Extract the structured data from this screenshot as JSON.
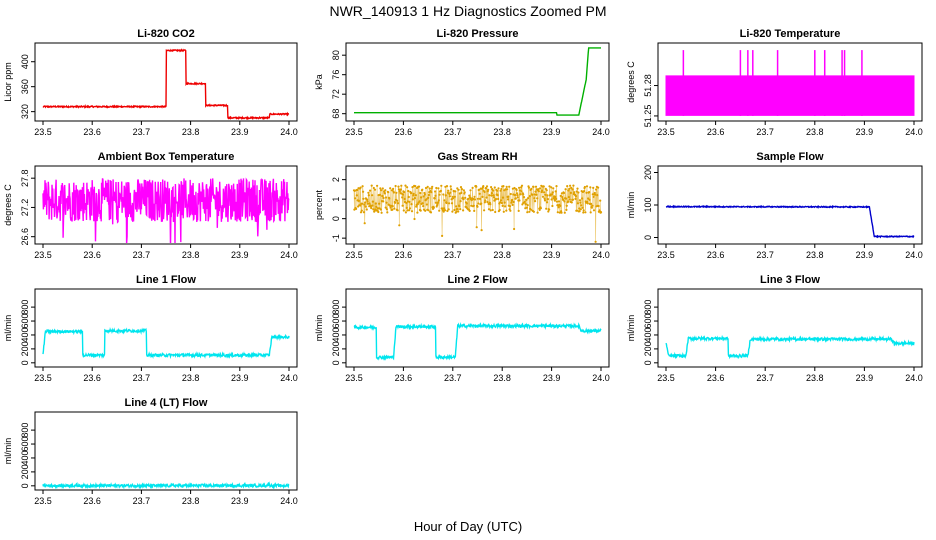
{
  "figure": {
    "title": "NWR_140913  1 Hz Diagnostics Zoomed PM",
    "xlabel": "Hour of Day (UTC)"
  },
  "chart_data": [
    {
      "type": "line",
      "title": "Li-820 CO2",
      "ylabel": "Licor ppm",
      "color": "#ee0000",
      "xlim": [
        23.5,
        24.0
      ],
      "ylim": [
        305,
        430
      ],
      "xticks": [
        "23.5",
        "23.6",
        "23.7",
        "23.8",
        "23.9",
        "24.0"
      ],
      "yticks": [
        320,
        360,
        400
      ],
      "x": [
        23.5,
        23.75,
        23.75,
        23.79,
        23.79,
        23.83,
        23.83,
        23.875,
        23.875,
        23.96,
        23.96,
        24.0
      ],
      "y": [
        328,
        328,
        418,
        418,
        365,
        365,
        330,
        330,
        310,
        310,
        316,
        316
      ]
    },
    {
      "type": "line",
      "title": "Li-820 Pressure",
      "ylabel": "kPa",
      "color": "#00b000",
      "xlim": [
        23.5,
        24.0
      ],
      "ylim": [
        66.5,
        82.5
      ],
      "xticks": [
        "23.5",
        "23.6",
        "23.7",
        "23.8",
        "23.9",
        "24.0"
      ],
      "yticks": [
        68,
        72,
        76,
        80
      ],
      "x": [
        23.5,
        23.91,
        23.91,
        23.955,
        23.97,
        23.975,
        24.0
      ],
      "y": [
        68.2,
        68.2,
        67.7,
        67.7,
        75,
        81.5,
        81.5
      ]
    },
    {
      "type": "line",
      "title": "Li-820 Temperature",
      "ylabel": "degrees C",
      "color": "#ff00ff",
      "xlim": [
        23.5,
        24.0
      ],
      "ylim": [
        51.245,
        51.322
      ],
      "xticks": [
        "23.5",
        "23.6",
        "23.7",
        "23.8",
        "23.9",
        "24.0"
      ],
      "yticks": [
        51.25,
        51.28
      ],
      "x": [
        23.5,
        24.0
      ],
      "y": [
        51.25,
        51.29
      ]
    },
    {
      "type": "line",
      "title": "Ambient Box Temperature",
      "ylabel": "degrees C",
      "color": "#ff00ff",
      "xlim": [
        23.5,
        24.0
      ],
      "ylim": [
        26.45,
        28.05
      ],
      "xticks": [
        "23.5",
        "23.6",
        "23.7",
        "23.8",
        "23.9",
        "24.0"
      ],
      "yticks": [
        26.6,
        27.2,
        27.8
      ],
      "x": [
        23.5,
        24.0
      ],
      "y": [
        27.35,
        27.35
      ]
    },
    {
      "type": "scatter",
      "title": "Gas Stream RH",
      "ylabel": "percent",
      "color": "#e0a000",
      "xlim": [
        23.5,
        24.0
      ],
      "ylim": [
        -1.3,
        2.7
      ],
      "xticks": [
        "23.5",
        "23.6",
        "23.7",
        "23.8",
        "23.9",
        "24.0"
      ],
      "yticks": [
        -1,
        0,
        1,
        2
      ],
      "x": [
        23.5,
        24.0
      ],
      "y": [
        1.0,
        1.0
      ]
    },
    {
      "type": "line",
      "title": "Sample Flow",
      "ylabel": "ml/min",
      "color": "#0000cc",
      "xlim": [
        23.5,
        24.0
      ],
      "ylim": [
        -20,
        220
      ],
      "xticks": [
        "23.5",
        "23.6",
        "23.7",
        "23.8",
        "23.9",
        "24.0"
      ],
      "yticks": [
        0,
        100,
        200
      ],
      "x": [
        23.5,
        23.91,
        23.92,
        24.0
      ],
      "y": [
        95,
        94,
        3,
        3
      ]
    },
    {
      "type": "line",
      "title": "Line 1 Flow",
      "ylabel": "ml/min",
      "color": "#00e5ee",
      "xlim": [
        23.5,
        24.0
      ],
      "ylim": [
        -60,
        1060
      ],
      "xticks": [
        "23.5",
        "23.6",
        "23.7",
        "23.8",
        "23.9",
        "24.0"
      ],
      "yticks": [
        0,
        200,
        400,
        600,
        800
      ],
      "x": [
        23.5,
        23.505,
        23.58,
        23.58,
        23.625,
        23.625,
        23.71,
        23.71,
        23.96,
        23.965,
        24.0
      ],
      "y": [
        120,
        450,
        450,
        110,
        110,
        460,
        460,
        110,
        110,
        370,
        370
      ]
    },
    {
      "type": "line",
      "title": "Line 2 Flow",
      "ylabel": "ml/min",
      "color": "#00e5ee",
      "xlim": [
        23.5,
        24.0
      ],
      "ylim": [
        -60,
        1060
      ],
      "xticks": [
        "23.5",
        "23.6",
        "23.7",
        "23.8",
        "23.9",
        "24.0"
      ],
      "yticks": [
        0,
        200,
        400,
        600,
        800
      ],
      "x": [
        23.5,
        23.545,
        23.545,
        23.58,
        23.585,
        23.665,
        23.665,
        23.705,
        23.71,
        23.955,
        23.96,
        24.0
      ],
      "y": [
        510,
        510,
        80,
        80,
        520,
        520,
        80,
        80,
        530,
        530,
        460,
        460
      ]
    },
    {
      "type": "line",
      "title": "Line 3 Flow",
      "ylabel": "ml/min",
      "color": "#00e5ee",
      "xlim": [
        23.5,
        24.0
      ],
      "ylim": [
        -60,
        1060
      ],
      "xticks": [
        "23.5",
        "23.6",
        "23.7",
        "23.8",
        "23.9",
        "24.0"
      ],
      "yticks": [
        0,
        200,
        400,
        600,
        800
      ],
      "x": [
        23.5,
        23.505,
        23.54,
        23.545,
        23.625,
        23.625,
        23.665,
        23.67,
        23.955,
        23.96,
        24.0
      ],
      "y": [
        300,
        100,
        100,
        350,
        350,
        100,
        100,
        340,
        340,
        280,
        280
      ]
    },
    {
      "type": "line",
      "title": "Line 4 (LT) Flow",
      "ylabel": "ml/min",
      "color": "#00e5ee",
      "xlim": [
        23.5,
        24.0
      ],
      "ylim": [
        -60,
        1060
      ],
      "xticks": [
        "23.5",
        "23.6",
        "23.7",
        "23.8",
        "23.9",
        "24.0"
      ],
      "yticks": [
        0,
        200,
        400,
        600,
        800
      ],
      "x": [
        23.5,
        23.955,
        23.958,
        23.962,
        24.0
      ],
      "y": [
        3,
        3,
        25,
        3,
        3
      ]
    }
  ]
}
